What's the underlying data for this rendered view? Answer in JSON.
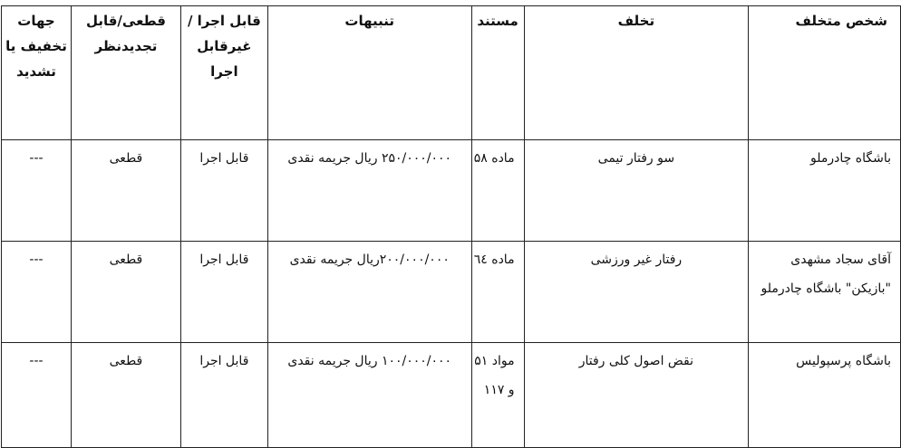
{
  "headers": {
    "person": "شخص متخلف",
    "violation": "تخلف",
    "reference": "مستند",
    "penalties": "تنبیهات",
    "enforceable": "قابل اجرا /غیرقابل اجرا",
    "final": "قطعی/قابل تجدیدنظر",
    "mitigation": "جهات تخفیف یا تشدید"
  },
  "rows": [
    {
      "person": "باشگاه چادرملو",
      "violation": "سو رفتار تیمی",
      "reference": "ماده ۵۸",
      "penalties": "۲۵۰/۰۰۰/۰۰۰ ریال جریمه نقدی",
      "enforceable": "قابل اجرا",
      "final": "قطعی",
      "mitigation": "---"
    },
    {
      "person": "آقای سجاد مشهدی \"بازیکن\" باشگاه چادرملو",
      "violation": "رفتار غیر ورزشی",
      "reference": "ماده ٦٤",
      "penalties": "۲۰۰/۰۰۰/۰۰۰ریال جریمه نقدی",
      "enforceable": "قابل اجرا",
      "final": "قطعی",
      "mitigation": "---"
    },
    {
      "person": "باشگاه پرسپولیس",
      "violation": "نقض اصول کلی رفتار",
      "reference": "مواد ۵۱ و ۱۱۷",
      "penalties": "۱۰۰/۰۰۰/۰۰۰ ریال جریمه نقدی",
      "enforceable": "قابل اجرا",
      "final": "قطعی",
      "mitigation": "---"
    }
  ]
}
